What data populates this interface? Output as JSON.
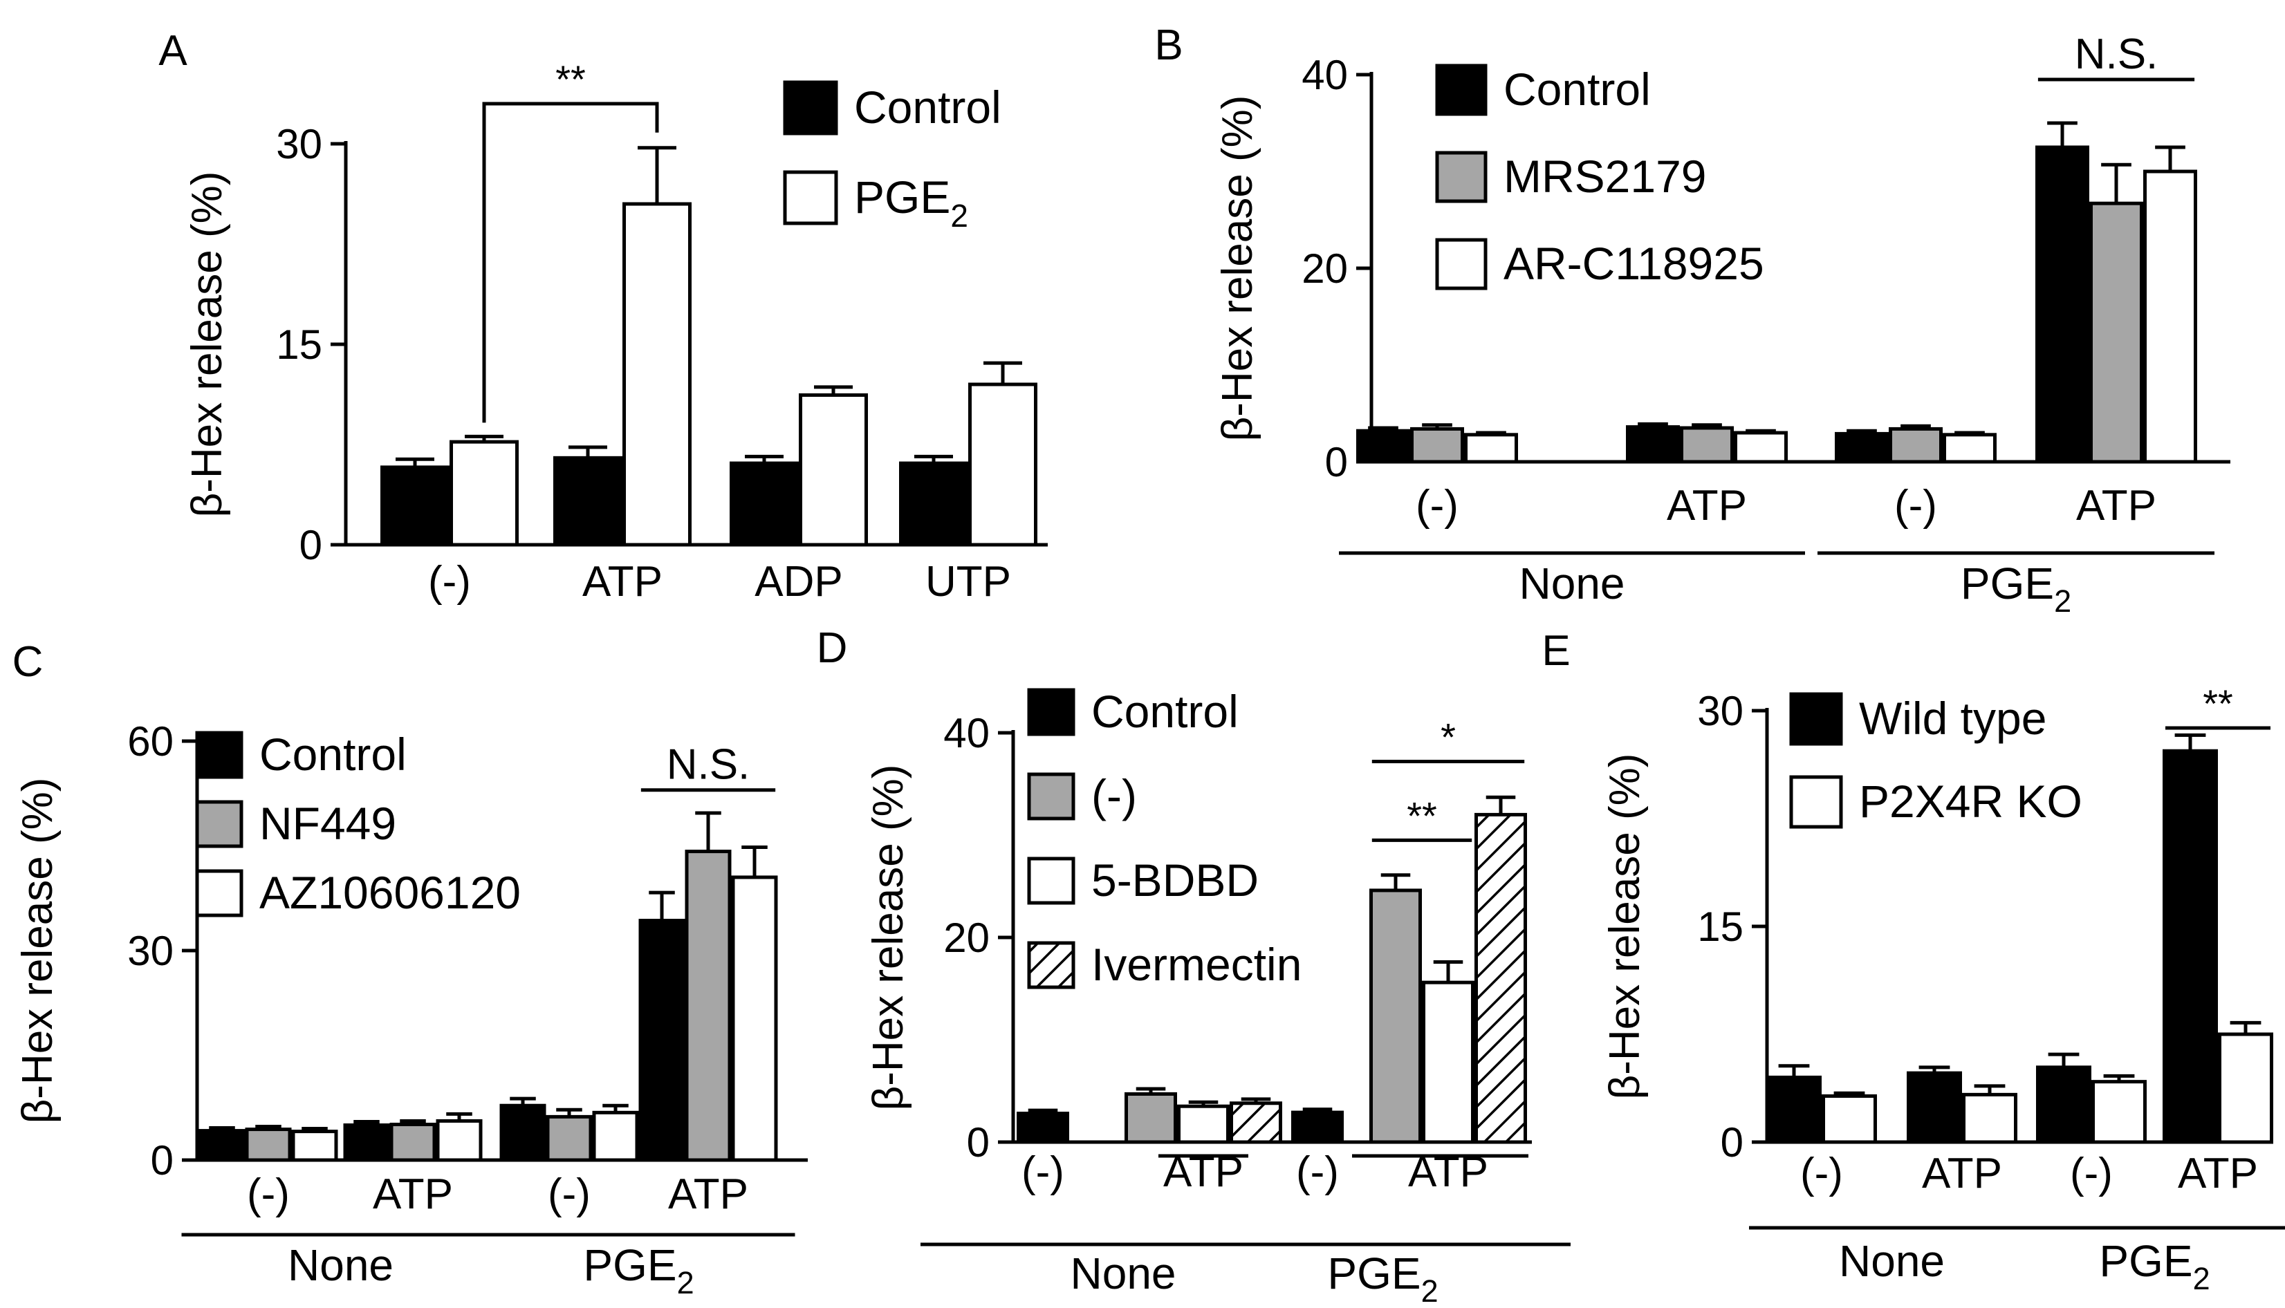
{
  "colors": {
    "black": "#000000",
    "gray": "#a6a6a6",
    "white": "#ffffff",
    "hatch": "hatch"
  },
  "chart_data": [
    {
      "panel": "A",
      "type": "bar",
      "ylabel": "β-Hex release (%)",
      "ylim": [
        0,
        30
      ],
      "yticks": [
        0,
        15,
        30
      ],
      "categories": [
        "(-)",
        "ATP",
        "ADP",
        "UTP"
      ],
      "groups": [],
      "series": [
        {
          "name": "Control",
          "fill": "black",
          "values": [
            5.8,
            6.5,
            6.1,
            6.1
          ],
          "errors": [
            0.6,
            0.8,
            0.5,
            0.5
          ]
        },
        {
          "name": "PGE2",
          "fill": "white",
          "values": [
            7.7,
            25.5,
            11.2,
            12.0
          ],
          "errors": [
            0.4,
            4.2,
            0.6,
            1.6
          ]
        }
      ],
      "legend": [
        {
          "label": "Control",
          "fill": "black"
        },
        {
          "label": "PGE",
          "sub": "2",
          "fill": "white"
        }
      ],
      "significance": [
        {
          "label": "**",
          "from": [
            0,
            1
          ],
          "to": [
            1,
            1
          ],
          "y": 33
        }
      ]
    },
    {
      "panel": "B",
      "type": "bar",
      "ylabel": "β-Hex release (%)",
      "ylim": [
        0,
        40
      ],
      "yticks": [
        0,
        20,
        40
      ],
      "categories": [
        "(-)",
        "ATP",
        "(-)",
        "ATP"
      ],
      "groups": [
        {
          "label": "None",
          "from": 0,
          "to": 1
        },
        {
          "label": "PGE",
          "sub": "2",
          "from": 2,
          "to": 3
        }
      ],
      "series": [
        {
          "name": "Control",
          "fill": "black",
          "values": [
            3.2,
            3.6,
            2.9,
            32.5
          ],
          "errors": [
            0.3,
            0.3,
            0.3,
            2.5
          ]
        },
        {
          "name": "MRS2179",
          "fill": "gray",
          "values": [
            3.4,
            3.5,
            3.4,
            26.7
          ],
          "errors": [
            0.4,
            0.3,
            0.3,
            4.0
          ]
        },
        {
          "name": "AR-C118925",
          "fill": "white",
          "values": [
            2.8,
            3.0,
            2.8,
            30.0
          ],
          "errors": [
            0.2,
            0.2,
            0.2,
            2.5
          ]
        }
      ],
      "legend": [
        {
          "label": "Control",
          "fill": "black"
        },
        {
          "label": "MRS2179",
          "fill": "gray"
        },
        {
          "label": "AR-C118925",
          "fill": "white"
        }
      ],
      "significance": [
        {
          "label": "N.S.",
          "from": [
            3,
            0
          ],
          "to": [
            3,
            2
          ],
          "y": 39.5
        }
      ]
    },
    {
      "panel": "C",
      "type": "bar",
      "ylabel": "β-Hex release (%)",
      "ylim": [
        0,
        60
      ],
      "yticks": [
        0,
        30,
        60
      ],
      "categories": [
        "(-)",
        "ATP",
        "(-)",
        "ATP"
      ],
      "groups": [
        {
          "label": "None",
          "from": 0,
          "to": 1
        },
        {
          "label": "PGE",
          "sub": "2",
          "from": 2,
          "to": 3
        }
      ],
      "series": [
        {
          "name": "Control",
          "fill": "black",
          "values": [
            4.2,
            5.0,
            7.8,
            34.3
          ],
          "errors": [
            0.4,
            0.5,
            1.0,
            4.0
          ]
        },
        {
          "name": "NF449",
          "fill": "gray",
          "values": [
            4.4,
            5.1,
            6.2,
            44.2
          ],
          "errors": [
            0.4,
            0.5,
            1.0,
            5.5
          ]
        },
        {
          "name": "AZ10606120",
          "fill": "white",
          "values": [
            4.1,
            5.6,
            6.8,
            40.5
          ],
          "errors": [
            0.4,
            1.0,
            1.0,
            4.3
          ]
        }
      ],
      "legend": [
        {
          "label": "Control",
          "fill": "black"
        },
        {
          "label": "NF449",
          "fill": "gray"
        },
        {
          "label": "AZ10606120",
          "fill": "white"
        }
      ],
      "significance": [
        {
          "label": "N.S.",
          "from": [
            3,
            0
          ],
          "to": [
            3,
            2
          ],
          "y": 53
        }
      ]
    },
    {
      "panel": "D",
      "type": "bar",
      "ylabel": "β-Hex release (%)",
      "ylim": [
        0,
        40
      ],
      "yticks": [
        0,
        20,
        40
      ],
      "categories": [
        "(-)",
        "ATP",
        "(-)",
        "ATP"
      ],
      "groups": [
        {
          "label": "None",
          "from": 0,
          "to": 1
        },
        {
          "label": "PGE",
          "sub": "2",
          "from": 2,
          "to": 3
        }
      ],
      "series": [
        {
          "name": "Control",
          "fill": "black",
          "values": [
            2.8,
            null,
            2.9,
            null
          ],
          "errors": [
            0.3,
            null,
            0.3,
            null
          ]
        },
        {
          "name": "(-)",
          "fill": "gray",
          "values": [
            null,
            4.7,
            null,
            24.6
          ],
          "errors": [
            null,
            0.5,
            null,
            1.5
          ]
        },
        {
          "name": "5-BDBD",
          "fill": "white",
          "values": [
            null,
            3.5,
            null,
            15.6
          ],
          "errors": [
            null,
            0.4,
            null,
            2.0
          ]
        },
        {
          "name": "Ivermectin",
          "fill": "hatch",
          "values": [
            null,
            3.8,
            null,
            32.0
          ],
          "errors": [
            null,
            0.4,
            null,
            1.7
          ]
        }
      ],
      "legend": [
        {
          "label": "Control",
          "fill": "black"
        },
        {
          "label": "(-)",
          "fill": "gray"
        },
        {
          "label": "5-BDBD",
          "fill": "white"
        },
        {
          "label": "Ivermectin",
          "fill": "hatch"
        }
      ],
      "significance": [
        {
          "label": "**",
          "from": [
            3,
            1
          ],
          "to": [
            3,
            2
          ],
          "y": 29.5
        },
        {
          "label": "*",
          "from": [
            3,
            1
          ],
          "to": [
            3,
            3
          ],
          "y": 37.2
        }
      ]
    },
    {
      "panel": "E",
      "type": "bar",
      "ylabel": "β-Hex release (%)",
      "ylim": [
        0,
        30
      ],
      "yticks": [
        0,
        15,
        30
      ],
      "categories": [
        "(-)",
        "ATP",
        "(-)",
        "ATP"
      ],
      "groups": [
        {
          "label": "None",
          "from": 0,
          "to": 1
        },
        {
          "label": "PGE",
          "sub": "2",
          "from": 2,
          "to": 3
        }
      ],
      "series": [
        {
          "name": "Wild type",
          "fill": "black",
          "values": [
            4.5,
            4.8,
            5.2,
            27.2
          ],
          "errors": [
            0.8,
            0.4,
            0.9,
            1.1
          ]
        },
        {
          "name": "P2X4R KO",
          "fill": "white",
          "values": [
            3.2,
            3.3,
            4.2,
            7.5
          ],
          "errors": [
            0.2,
            0.6,
            0.4,
            0.8
          ]
        }
      ],
      "legend": [
        {
          "label": "Wild type",
          "fill": "black"
        },
        {
          "label": "P2X4R KO",
          "fill": "white"
        }
      ],
      "significance": [
        {
          "label": "**",
          "from": [
            3,
            0
          ],
          "to": [
            3,
            1
          ],
          "y": 28.8
        }
      ]
    }
  ]
}
